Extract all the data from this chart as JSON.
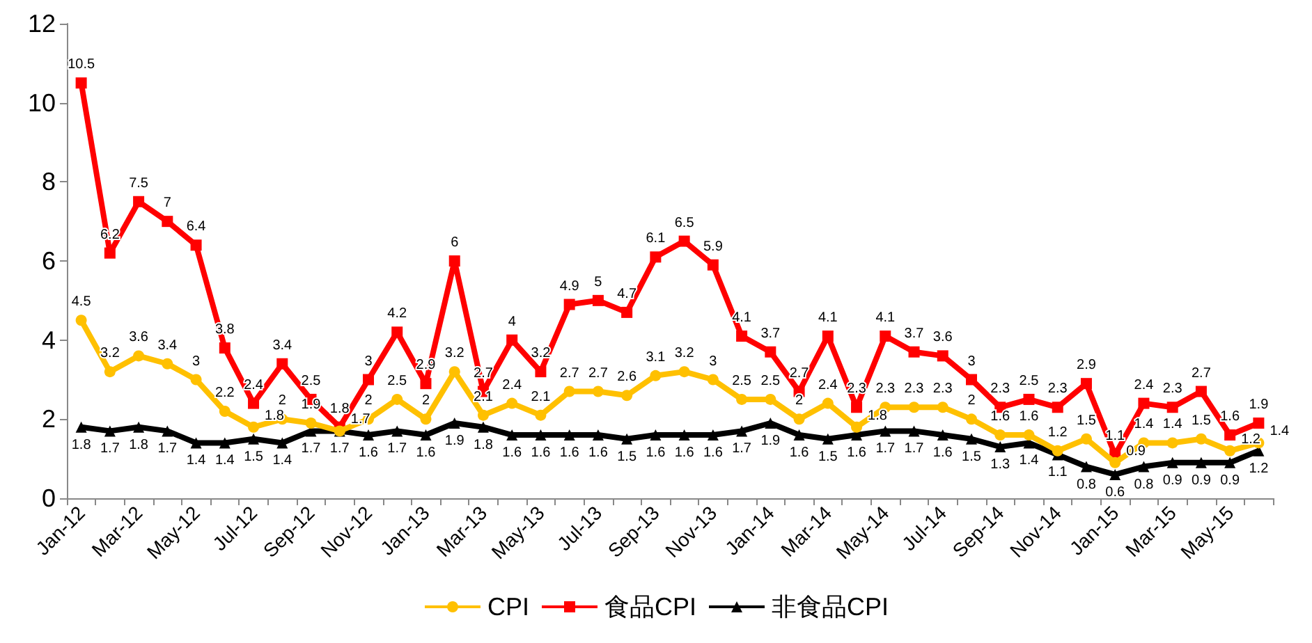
{
  "chart_data": {
    "type": "line",
    "categories": [
      "Jan-12",
      null,
      "Mar-12",
      null,
      "May-12",
      null,
      "Jul-12",
      null,
      "Sep-12",
      null,
      "Nov-12",
      null,
      "Jan-13",
      null,
      "Mar-13",
      null,
      "May-13",
      null,
      "Jul-13",
      null,
      "Sep-13",
      null,
      "Nov-13",
      null,
      "Jan-14",
      null,
      "Mar-14",
      null,
      "May-14",
      null,
      "Jul-14",
      null,
      "Sep-14",
      null,
      "Nov-14",
      null,
      "Jan-15",
      null,
      "Mar-15",
      null,
      "May-15",
      null
    ],
    "series": [
      {
        "name": "CPI",
        "color": "#ffc000",
        "marker": "circle",
        "values": [
          4.5,
          3.2,
          3.6,
          3.4,
          3.0,
          2.2,
          1.8,
          2,
          1.9,
          1.7,
          2,
          2.5,
          2,
          3.2,
          2.1,
          2.4,
          2.1,
          2.7,
          2.7,
          2.6,
          3.1,
          3.2,
          3,
          2.5,
          2.5,
          2,
          2.4,
          1.8,
          2.3,
          2.3,
          2.3,
          2,
          1.6,
          1.6,
          1.2,
          1.5,
          0.9,
          1.4,
          1.4,
          1.5,
          1.2,
          1.4
        ]
      },
      {
        "name": "食品CPI",
        "color": "#ff0000",
        "marker": "square",
        "values": [
          10.5,
          6.2,
          7.5,
          7,
          6.4,
          3.8,
          2.4,
          3.4,
          2.5,
          1.8,
          3,
          4.2,
          2.9,
          6,
          2.7,
          4.0,
          3.2,
          4.9,
          5,
          4.7,
          6.1,
          6.5,
          5.9,
          4.1,
          3.7,
          2.7,
          4.1,
          2.3,
          4.1,
          3.7,
          3.6,
          3,
          2.3,
          2.5,
          2.3,
          2.9,
          1.1,
          2.4,
          2.3,
          2.7,
          1.6,
          1.9
        ]
      },
      {
        "name": "非食品CPI",
        "color": "#000000",
        "marker": "triangle",
        "values": [
          1.8,
          1.7,
          1.8,
          1.7,
          1.4,
          1.4,
          1.5,
          1.4,
          1.7,
          1.7,
          1.6,
          1.7,
          1.6,
          1.9,
          1.8,
          1.6,
          1.6,
          1.6,
          1.6,
          1.5,
          1.6,
          1.6,
          1.6,
          1.7,
          1.9,
          1.6,
          1.5,
          1.6,
          1.7,
          1.7,
          1.6,
          1.5,
          1.3,
          1.4,
          1.1,
          0.8,
          0.6,
          0.8,
          0.9,
          0.9,
          0.9,
          1.2
        ]
      }
    ],
    "ylim": [
      0,
      12
    ],
    "yticks": [
      0,
      2,
      4,
      6,
      8,
      10,
      12
    ],
    "grid": false,
    "legend": "bottom",
    "data_labels": true
  }
}
